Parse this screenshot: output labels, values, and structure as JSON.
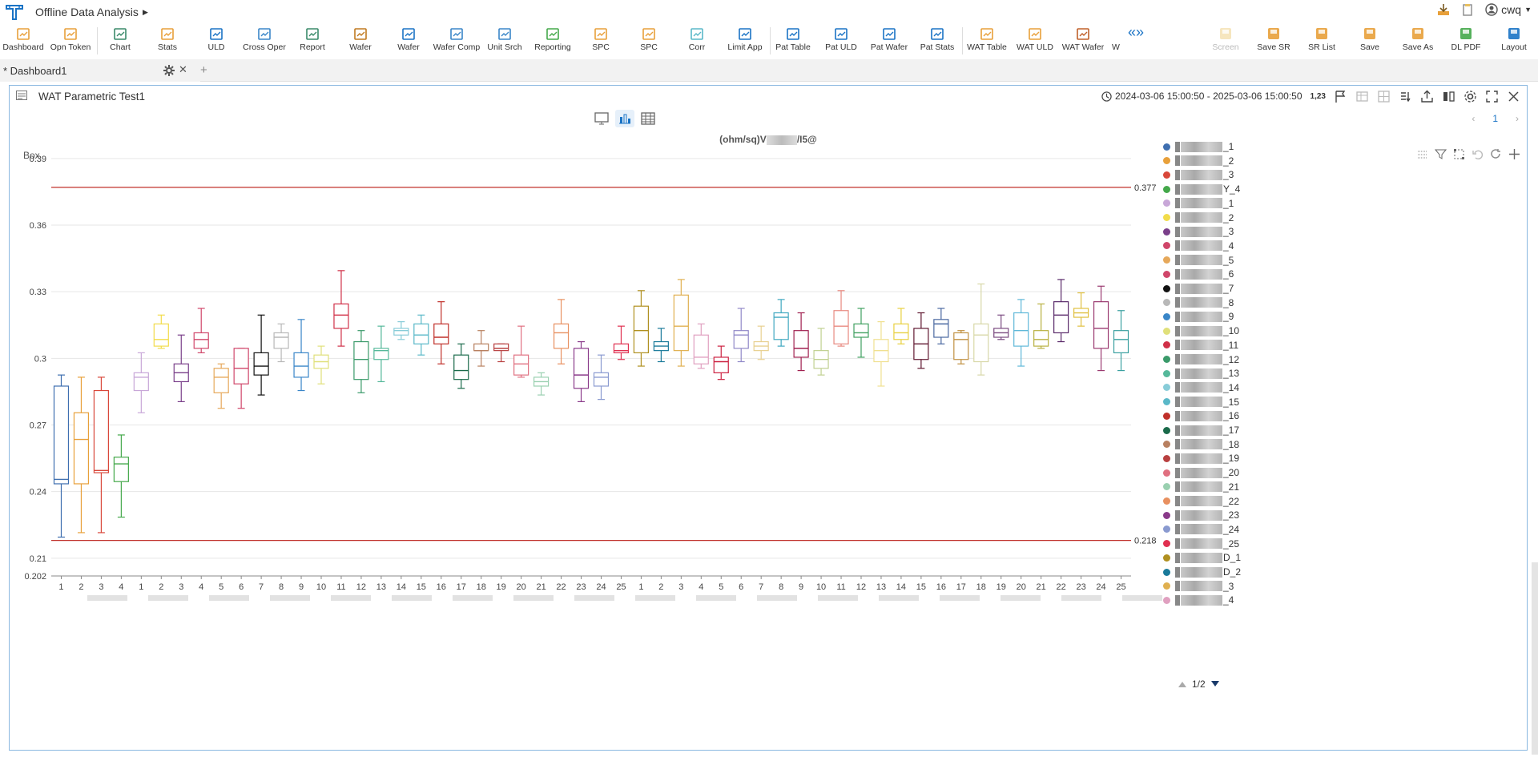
{
  "app": {
    "title": "Offline Data Analysis",
    "user": "cwq"
  },
  "toolbar": {
    "left": [
      "Dashboard",
      "Opn Token",
      "Chart",
      "Stats",
      "ULD",
      "Cross Oper",
      "Report",
      "Wafer",
      "Wafer",
      "Wafer Comp",
      "Unit Srch",
      "Reporting",
      "SPC",
      "SPC",
      "Corr",
      "Limit App",
      "Pat Table",
      "Pat ULD",
      "Pat Wafer",
      "Pat Stats",
      "WAT Table",
      "WAT ULD",
      "WAT Wafer",
      "W"
    ],
    "right": [
      "Screen",
      "Save SR",
      "SR List",
      "Save",
      "Save As",
      "DL PDF",
      "Layout"
    ]
  },
  "tabs": [
    {
      "label": "* Dashboard1"
    }
  ],
  "panel": {
    "title": "WAT Parametric Test1",
    "date_range": "2024-03-06 15:00:50 - 2025-03-06 15:00:50",
    "number_format": "1,23",
    "page": "1",
    "chart_title_prefix": "(ohm/sq)V",
    "chart_title_suffix": "/I5@",
    "chart_kind_label": "Box"
  },
  "chart_data": {
    "type": "box",
    "y_range": [
      0.202,
      0.395
    ],
    "y_ticks": [
      0.21,
      0.24,
      0.27,
      0.3,
      0.33,
      0.36,
      0.39
    ],
    "y_min_label": "0.202",
    "limits": [
      {
        "value": 0.377,
        "label": "0.377"
      },
      {
        "value": 0.218,
        "label": "0.218"
      }
    ],
    "x_labels": [
      "1",
      "2",
      "3",
      "4",
      "1",
      "2",
      "3",
      "4",
      "5",
      "6",
      "7",
      "8",
      "9",
      "10",
      "11",
      "12",
      "13",
      "14",
      "15",
      "16",
      "17",
      "18",
      "19",
      "20",
      "21",
      "22",
      "23",
      "24",
      "25",
      "1",
      "2",
      "3",
      "4",
      "5",
      "6",
      "7",
      "8",
      "9",
      "10",
      "11",
      "12",
      "13",
      "14",
      "15",
      "16",
      "17",
      "18",
      "19",
      "20",
      "21",
      "22",
      "23",
      "24",
      "25"
    ],
    "boxes": [
      [
        0.2195,
        0.2435,
        0.2455,
        0.2875,
        0.2925
      ],
      [
        0.2215,
        0.2435,
        0.2635,
        0.2755,
        0.2915
      ],
      [
        0.2215,
        0.2485,
        0.2495,
        0.2855,
        0.2915
      ],
      [
        0.2285,
        0.2445,
        0.2525,
        0.2555,
        0.2655
      ],
      [
        0.2755,
        0.2855,
        0.2915,
        0.2935,
        0.3025
      ],
      [
        0.3045,
        0.3055,
        0.3085,
        0.3155,
        0.3195
      ],
      [
        0.2805,
        0.2895,
        0.2935,
        0.2975,
        0.3105
      ],
      [
        0.3025,
        0.3045,
        0.3085,
        0.3115,
        0.3225
      ],
      [
        0.2775,
        0.2845,
        0.2915,
        0.2955,
        0.2975
      ],
      [
        0.2775,
        0.2885,
        0.2955,
        0.3045,
        0.3045
      ],
      [
        0.2835,
        0.2925,
        0.2965,
        0.3025,
        0.3195
      ],
      [
        0.2985,
        0.3045,
        0.3095,
        0.3115,
        0.3155
      ],
      [
        0.2855,
        0.2915,
        0.2965,
        0.3025,
        0.3175
      ],
      [
        0.2885,
        0.2955,
        0.2985,
        0.3015,
        0.3055
      ],
      [
        0.3055,
        0.3135,
        0.3195,
        0.3245,
        0.3395
      ],
      [
        0.2845,
        0.2905,
        0.2995,
        0.3075,
        0.3125
      ],
      [
        0.2895,
        0.2995,
        0.3035,
        0.3045,
        0.3145
      ],
      [
        0.3085,
        0.3105,
        0.3125,
        0.3135,
        0.3165
      ],
      [
        0.3015,
        0.3065,
        0.3105,
        0.3155,
        0.3195
      ],
      [
        0.2975,
        0.3065,
        0.3095,
        0.3155,
        0.3255
      ],
      [
        0.2865,
        0.2905,
        0.2945,
        0.3015,
        0.3065
      ],
      [
        0.2965,
        0.3035,
        0.3035,
        0.3065,
        0.3125
      ],
      [
        0.2985,
        0.3035,
        0.3045,
        0.3065,
        0.3065
      ],
      [
        0.2915,
        0.2925,
        0.2975,
        0.3015,
        0.3145
      ],
      [
        0.2835,
        0.2875,
        0.2895,
        0.2915,
        0.2935
      ],
      [
        0.2975,
        0.3045,
        0.3115,
        0.3155,
        0.3265
      ],
      [
        0.2805,
        0.2865,
        0.2925,
        0.3045,
        0.3075
      ],
      [
        0.2815,
        0.2875,
        0.2915,
        0.2935,
        0.3015
      ],
      [
        0.2995,
        0.3025,
        0.3035,
        0.3065,
        0.3145
      ],
      [
        0.2965,
        0.3025,
        0.3125,
        0.3235,
        0.3305
      ],
      [
        0.2985,
        0.3035,
        0.3055,
        0.3075,
        0.3135
      ],
      [
        0.2965,
        0.3035,
        0.3145,
        0.3285,
        0.3355
      ],
      [
        0.2955,
        0.2975,
        0.3005,
        0.3105,
        0.3155
      ],
      [
        0.2905,
        0.2935,
        0.2985,
        0.3005,
        0.3055
      ],
      [
        0.2985,
        0.3045,
        0.3105,
        0.3125,
        0.3225
      ],
      [
        0.2995,
        0.3035,
        0.3055,
        0.3075,
        0.3145
      ],
      [
        0.3055,
        0.3085,
        0.3185,
        0.3205,
        0.3265
      ],
      [
        0.2945,
        0.3005,
        0.3045,
        0.3125,
        0.3205
      ],
      [
        0.2925,
        0.2955,
        0.2995,
        0.3035,
        0.3135
      ],
      [
        0.3055,
        0.3065,
        0.3145,
        0.3215,
        0.3305
      ],
      [
        0.3005,
        0.3095,
        0.3115,
        0.3155,
        0.3225
      ],
      [
        0.2875,
        0.2985,
        0.3035,
        0.3085,
        0.3165
      ],
      [
        0.3065,
        0.3085,
        0.3115,
        0.3155,
        0.3225
      ],
      [
        0.2955,
        0.2995,
        0.3065,
        0.3135,
        0.3205
      ],
      [
        0.3065,
        0.3095,
        0.3155,
        0.3175,
        0.3225
      ],
      [
        0.2975,
        0.2995,
        0.3085,
        0.3115,
        0.3125
      ],
      [
        0.2925,
        0.2985,
        0.3105,
        0.3155,
        0.3335
      ],
      [
        0.3085,
        0.3095,
        0.3115,
        0.3135,
        0.3195
      ],
      [
        0.2965,
        0.3055,
        0.3125,
        0.3205,
        0.3265
      ],
      [
        0.3045,
        0.3055,
        0.3085,
        0.3125,
        0.3245
      ],
      [
        0.3075,
        0.3115,
        0.3195,
        0.3255,
        0.3355
      ],
      [
        0.3145,
        0.3185,
        0.3205,
        0.3225,
        0.3295
      ],
      [
        0.2945,
        0.3045,
        0.3135,
        0.3255,
        0.3325
      ],
      [
        0.2945,
        0.3025,
        0.3085,
        0.3125,
        0.3215
      ]
    ],
    "colors": [
      "#3f6fb0",
      "#e8a03a",
      "#d9473a",
      "#44a84a",
      "#c8a7d8",
      "#f2dc4a",
      "#7a3f8a",
      "#d0466a",
      "#e6a85a",
      "#d0466a",
      "#111111",
      "#b8b8b8",
      "#3a86c8",
      "#e0e07a",
      "#d03048",
      "#3a9a6a",
      "#55b89a",
      "#88ccd8",
      "#5ab8c8",
      "#c0302a",
      "#1a6a4a",
      "#b88060",
      "#b84040",
      "#e07080",
      "#9ad0b0",
      "#e89060",
      "#8a3a8a",
      "#8a9ad0",
      "#e03050",
      "#b09020",
      "#1a7a9a",
      "#e0b050",
      "#e0a0c0",
      "#cc2040",
      "#9088c8",
      "#e8d090",
      "#40a8c0",
      "#a02050",
      "#c0d090",
      "#e88a80",
      "#40a060",
      "#f0e090",
      "#e8d040",
      "#601830",
      "#4a68a0",
      "#c09040",
      "#d8d8a8",
      "#7a4a80",
      "#60b8d8",
      "#b8b040",
      "#5a2a6a",
      "#e0c040",
      "#9a3a70",
      "#3aa0a0"
    ],
    "legend": [
      {
        "suffix": "_1",
        "color": "#3f6fb0"
      },
      {
        "suffix": "_2",
        "color": "#e8a03a"
      },
      {
        "suffix": "_3",
        "color": "#d9473a"
      },
      {
        "suffix": "Y_4",
        "color": "#44a84a"
      },
      {
        "suffix": "_1",
        "color": "#c8a7d8"
      },
      {
        "suffix": "_2",
        "color": "#f2dc4a"
      },
      {
        "suffix": "_3",
        "color": "#7a3f8a"
      },
      {
        "suffix": "_4",
        "color": "#d0466a"
      },
      {
        "suffix": "_5",
        "color": "#e6a85a"
      },
      {
        "suffix": "_6",
        "color": "#d0466a"
      },
      {
        "suffix": "_7",
        "color": "#111111"
      },
      {
        "suffix": "_8",
        "color": "#b8b8b8"
      },
      {
        "suffix": "_9",
        "color": "#3a86c8"
      },
      {
        "suffix": "_10",
        "color": "#e0e07a"
      },
      {
        "suffix": "_11",
        "color": "#d03048"
      },
      {
        "suffix": "_12",
        "color": "#3a9a6a"
      },
      {
        "suffix": "_13",
        "color": "#55b89a"
      },
      {
        "suffix": "_14",
        "color": "#88ccd8"
      },
      {
        "suffix": "_15",
        "color": "#5ab8c8"
      },
      {
        "suffix": "_16",
        "color": "#c0302a"
      },
      {
        "suffix": "_17",
        "color": "#1a6a4a"
      },
      {
        "suffix": "_18",
        "color": "#b88060"
      },
      {
        "suffix": "_19",
        "color": "#b84040"
      },
      {
        "suffix": "_20",
        "color": "#e07080"
      },
      {
        "suffix": "_21",
        "color": "#9ad0b0"
      },
      {
        "suffix": "_22",
        "color": "#e89060"
      },
      {
        "suffix": "_23",
        "color": "#8a3a8a"
      },
      {
        "suffix": "_24",
        "color": "#8a9ad0"
      },
      {
        "suffix": "_25",
        "color": "#e03050"
      },
      {
        "suffix": "D_1",
        "color": "#b09020"
      },
      {
        "suffix": "D_2",
        "color": "#1a7a9a"
      },
      {
        "suffix": "_3",
        "color": "#e0b050"
      },
      {
        "suffix": "_4",
        "color": "#e0a0c0"
      }
    ],
    "legend_page": "1/2"
  }
}
